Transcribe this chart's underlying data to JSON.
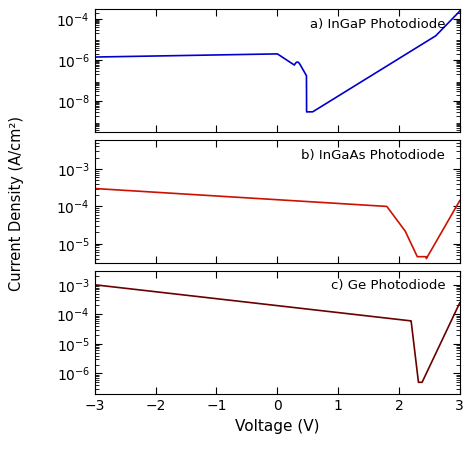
{
  "title_a": "a) InGaP Photodiode",
  "title_b": "b) InGaAs Photodiode",
  "title_c": "c) Ge Photodiode",
  "xlabel": "Voltage (V)",
  "ylabel": "Current Density (A/cm²)",
  "xlim": [
    -3,
    3
  ],
  "color_a": "#0000CC",
  "color_b": "#CC1100",
  "color_c": "#6B0000",
  "background": "#ffffff",
  "ylim_a": [
    3e-10,
    0.0003
  ],
  "ylim_b": [
    3e-06,
    0.006
  ],
  "ylim_c": [
    2e-07,
    0.003
  ],
  "yticks_a": [
    1e-08,
    1e-06,
    0.0001
  ],
  "yticks_b": [
    1e-05,
    0.0001,
    0.001
  ],
  "yticks_c": [
    1e-06,
    1e-05,
    0.0001,
    0.001
  ],
  "xticks": [
    -3,
    -2,
    -1,
    0,
    1,
    2,
    3
  ]
}
